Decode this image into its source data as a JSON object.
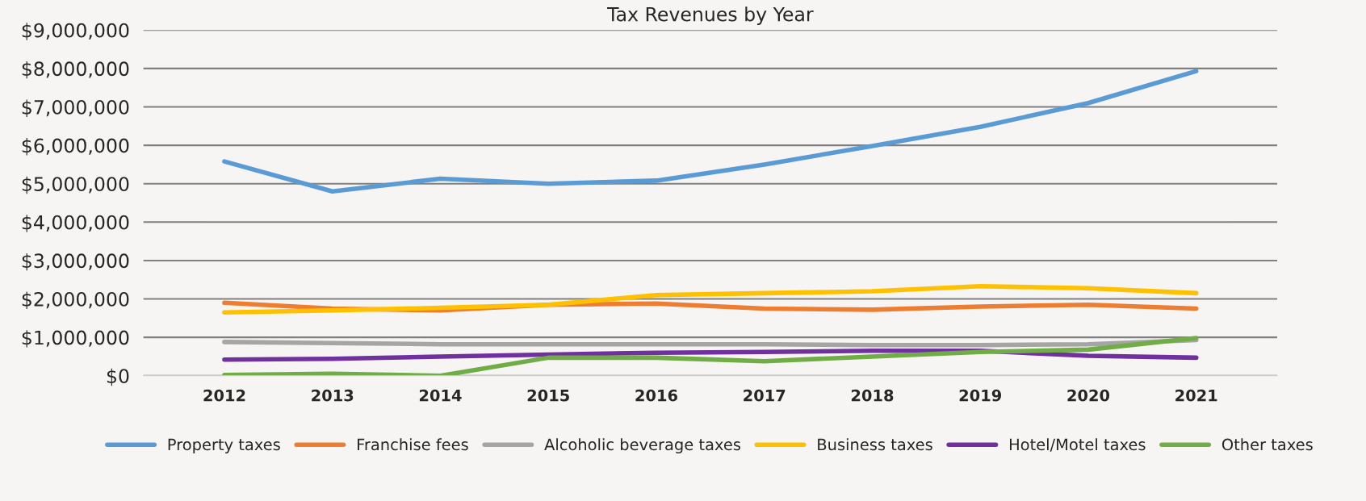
{
  "chart_data": {
    "type": "line",
    "title": "Tax Revenues by Year",
    "categories": [
      "2012",
      "2013",
      "2014",
      "2015",
      "2016",
      "2017",
      "2018",
      "2019",
      "2020",
      "2021"
    ],
    "series": [
      {
        "name": "Property taxes",
        "color": "#5b9bd5",
        "values": [
          5580000,
          4800000,
          5130000,
          5000000,
          5080000,
          5500000,
          5980000,
          6480000,
          7100000,
          7930000
        ]
      },
      {
        "name": "Franchise fees",
        "color": "#ed7d31",
        "values": [
          1900000,
          1750000,
          1700000,
          1850000,
          1880000,
          1750000,
          1720000,
          1800000,
          1850000,
          1750000
        ]
      },
      {
        "name": "Alcoholic beverage taxes",
        "color": "#a5a5a5",
        "values": [
          880000,
          850000,
          820000,
          820000,
          820000,
          820000,
          800000,
          800000,
          820000,
          930000
        ]
      },
      {
        "name": "Business taxes",
        "color": "#ffc000",
        "values": [
          1650000,
          1700000,
          1770000,
          1850000,
          2100000,
          2150000,
          2200000,
          2330000,
          2280000,
          2150000
        ]
      },
      {
        "name": "Hotel/Motel taxes",
        "color": "#7030a0",
        "values": [
          420000,
          440000,
          500000,
          550000,
          600000,
          620000,
          650000,
          650000,
          520000,
          470000
        ]
      },
      {
        "name": "Other taxes",
        "color": "#70ad47",
        "values": [
          20000,
          50000,
          0,
          470000,
          470000,
          380000,
          500000,
          620000,
          680000,
          980000
        ]
      }
    ],
    "ylim": [
      0,
      9000000
    ],
    "yticks": [
      {
        "value": 0,
        "label": "$0"
      },
      {
        "value": 1000000,
        "label": "$1,000,000"
      },
      {
        "value": 2000000,
        "label": "$2,000,000"
      },
      {
        "value": 3000000,
        "label": "$3,000,000"
      },
      {
        "value": 4000000,
        "label": "$4,000,000"
      },
      {
        "value": 5000000,
        "label": "$5,000,000"
      },
      {
        "value": 6000000,
        "label": "$6,000,000"
      },
      {
        "value": 7000000,
        "label": "$7,000,000"
      },
      {
        "value": 8000000,
        "label": "$8,000,000"
      },
      {
        "value": 9000000,
        "label": "$9,000,000"
      }
    ],
    "grid": "y",
    "legend": "bottom",
    "marker": "none",
    "line_style": "solid"
  }
}
